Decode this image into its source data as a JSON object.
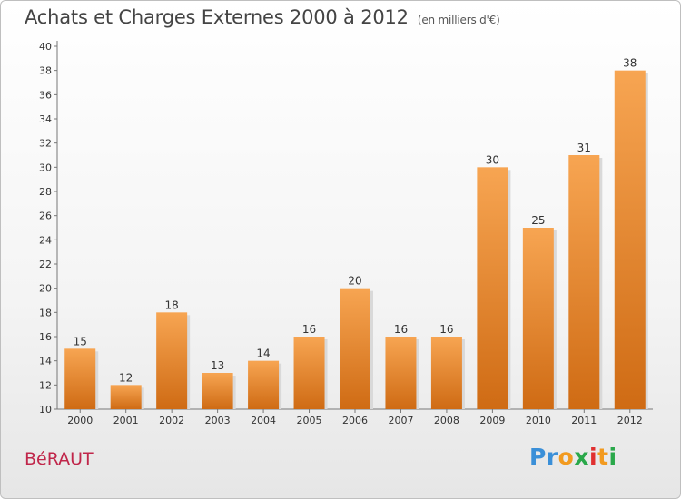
{
  "header": {
    "title": "Achats et Charges Externes 2000 à 2012",
    "unit": "(en milliers d'€)"
  },
  "footer": {
    "commune": "BéRAUT",
    "brand": [
      {
        "char": "P",
        "color": "#3a8fd8"
      },
      {
        "char": "r",
        "color": "#3a8fd8"
      },
      {
        "char": "o",
        "color": "#f29a1f"
      },
      {
        "char": "x",
        "color": "#2aa84a"
      },
      {
        "char": "i",
        "color": "#e03030"
      },
      {
        "char": "t",
        "color": "#f29a1f"
      },
      {
        "char": "i",
        "color": "#2aa84a"
      }
    ]
  },
  "chart_data": {
    "type": "bar",
    "categories": [
      "2000",
      "2001",
      "2002",
      "2003",
      "2004",
      "2005",
      "2006",
      "2007",
      "2008",
      "2009",
      "2010",
      "2011",
      "2012"
    ],
    "values": [
      15,
      12,
      18,
      13,
      14,
      16,
      20,
      16,
      16,
      30,
      25,
      31,
      38
    ],
    "title": "Achats et Charges Externes 2000 à 2012",
    "ylim": [
      10,
      40
    ],
    "yticks": [
      10,
      12,
      14,
      16,
      18,
      20,
      22,
      24,
      26,
      28,
      30,
      32,
      34,
      36,
      38,
      40
    ],
    "grid": false,
    "colors": {
      "bar_top": "#f7a552",
      "bar_bottom": "#cf6b14",
      "bar_shadow": "#d9d9d9"
    }
  }
}
